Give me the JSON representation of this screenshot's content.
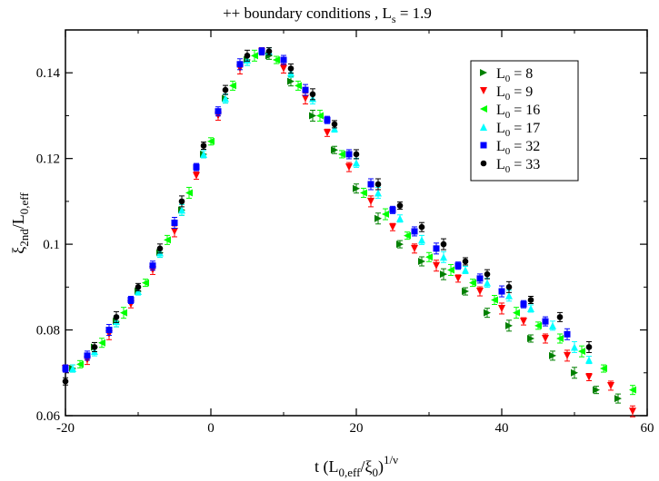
{
  "chart_data": {
    "type": "scatter",
    "title": {
      "prefix": "++ boundary conditions , L",
      "sub": "s",
      "suffix": " = 1.9"
    },
    "xlabel": {
      "a": "t (L",
      "a_sub": "0,eff",
      "b": "/ξ",
      "b_sub": "0",
      "c": ")",
      "sup": "1/ν"
    },
    "ylabel": {
      "main": "ξ",
      "sub1": "2nd",
      "slash": "/L",
      "sub2": "0,eff"
    },
    "xlim": [
      -20,
      60
    ],
    "ylim": [
      0.06,
      0.15
    ],
    "xticks": [
      -20,
      0,
      20,
      40,
      60
    ],
    "xtick_labels": [
      "-20",
      "0",
      "20",
      "40",
      "60"
    ],
    "yticks": [
      0.06,
      0.08,
      0.1,
      0.12,
      0.14
    ],
    "ytick_labels": [
      "0.06",
      "0.08",
      "0.1",
      "0.12",
      "0.14"
    ],
    "grid": false,
    "legend_position": "top-right",
    "series": [
      {
        "name": "L0 = 8",
        "label_pre": "L",
        "label_sub": "0",
        "label_val": "=    8",
        "color": "#008000",
        "marker": "triangle-right",
        "x": [
          -19,
          -16,
          -13,
          -10,
          -7,
          -4,
          -1,
          2,
          5,
          8,
          11,
          14,
          17,
          20,
          23,
          26,
          29,
          32,
          35,
          38,
          41,
          44,
          47,
          50,
          53,
          56
        ],
        "y": [
          0.071,
          0.076,
          0.082,
          0.089,
          0.098,
          0.108,
          0.121,
          0.134,
          0.143,
          0.144,
          0.138,
          0.13,
          0.122,
          0.113,
          0.106,
          0.1,
          0.096,
          0.093,
          0.089,
          0.084,
          0.081,
          0.078,
          0.074,
          0.07,
          0.066,
          0.064
        ]
      },
      {
        "name": "L0 = 9",
        "label_pre": "L",
        "label_sub": "0",
        "label_val": "=    9",
        "color": "#ff0000",
        "marker": "triangle-down",
        "x": [
          -20,
          -17,
          -14,
          -11,
          -8,
          -5,
          -2,
          1,
          4,
          7,
          10,
          13,
          16,
          19,
          22,
          25,
          28,
          31,
          34,
          37,
          40,
          43,
          46,
          49,
          52,
          55,
          58
        ],
        "y": [
          0.071,
          0.073,
          0.079,
          0.086,
          0.094,
          0.103,
          0.116,
          0.13,
          0.141,
          0.145,
          0.141,
          0.134,
          0.126,
          0.118,
          0.11,
          0.104,
          0.099,
          0.095,
          0.092,
          0.089,
          0.085,
          0.082,
          0.078,
          0.074,
          0.069,
          0.067,
          0.061
        ]
      },
      {
        "name": "L0 = 16",
        "label_pre": "L",
        "label_sub": "0",
        "label_val": "= 16",
        "color": "#00ff00",
        "marker": "triangle-left",
        "x": [
          -18,
          -15,
          -12,
          -9,
          -6,
          -3,
          0,
          3,
          6,
          9,
          12,
          15,
          18,
          21,
          24,
          27,
          30,
          33,
          36,
          39,
          42,
          45,
          48,
          51,
          54,
          58
        ],
        "y": [
          0.072,
          0.077,
          0.084,
          0.091,
          0.101,
          0.112,
          0.124,
          0.137,
          0.144,
          0.143,
          0.137,
          0.13,
          0.121,
          0.112,
          0.107,
          0.102,
          0.097,
          0.094,
          0.091,
          0.087,
          0.084,
          0.081,
          0.078,
          0.075,
          0.071,
          0.066
        ]
      },
      {
        "name": "L0 = 17",
        "label_pre": "L",
        "label_sub": "0",
        "label_val": "= 17",
        "color": "#00ffff",
        "marker": "triangle-up",
        "x": [
          -19,
          -16,
          -13,
          -10,
          -7,
          -4,
          -1,
          2,
          5,
          8,
          11,
          14,
          17,
          20,
          23,
          26,
          29,
          32,
          35,
          38,
          41,
          44,
          47,
          50,
          52
        ],
        "y": [
          0.071,
          0.075,
          0.082,
          0.089,
          0.098,
          0.108,
          0.121,
          0.134,
          0.143,
          0.145,
          0.14,
          0.134,
          0.127,
          0.119,
          0.112,
          0.106,
          0.101,
          0.097,
          0.094,
          0.091,
          0.088,
          0.085,
          0.081,
          0.076,
          0.073
        ]
      },
      {
        "name": "L0 = 32",
        "label_pre": "L",
        "label_sub": "0",
        "label_val": "= 32",
        "color": "#0000ff",
        "marker": "square",
        "x": [
          -20,
          -17,
          -14,
          -11,
          -8,
          -5,
          -2,
          1,
          4,
          7,
          10,
          13,
          16,
          19,
          22,
          25,
          28,
          31,
          34,
          37,
          40,
          43,
          46,
          49
        ],
        "y": [
          0.071,
          0.074,
          0.08,
          0.087,
          0.095,
          0.105,
          0.118,
          0.131,
          0.142,
          0.145,
          0.143,
          0.136,
          0.129,
          0.121,
          0.114,
          0.108,
          0.103,
          0.099,
          0.095,
          0.092,
          0.089,
          0.086,
          0.082,
          0.079
        ]
      },
      {
        "name": "L0 = 33",
        "label_pre": "L",
        "label_sub": "0",
        "label_val": "= 33",
        "color": "#000000",
        "marker": "circle",
        "x": [
          -20,
          -16,
          -13,
          -10,
          -7,
          -4,
          -1,
          2,
          5,
          8,
          11,
          14,
          17,
          20,
          23,
          26,
          29,
          32,
          35,
          38,
          41,
          44,
          48,
          52
        ],
        "y": [
          0.068,
          0.076,
          0.083,
          0.09,
          0.099,
          0.11,
          0.123,
          0.136,
          0.144,
          0.145,
          0.141,
          0.135,
          0.128,
          0.121,
          0.114,
          0.109,
          0.104,
          0.1,
          0.096,
          0.093,
          0.09,
          0.087,
          0.083,
          0.076
        ]
      }
    ]
  }
}
